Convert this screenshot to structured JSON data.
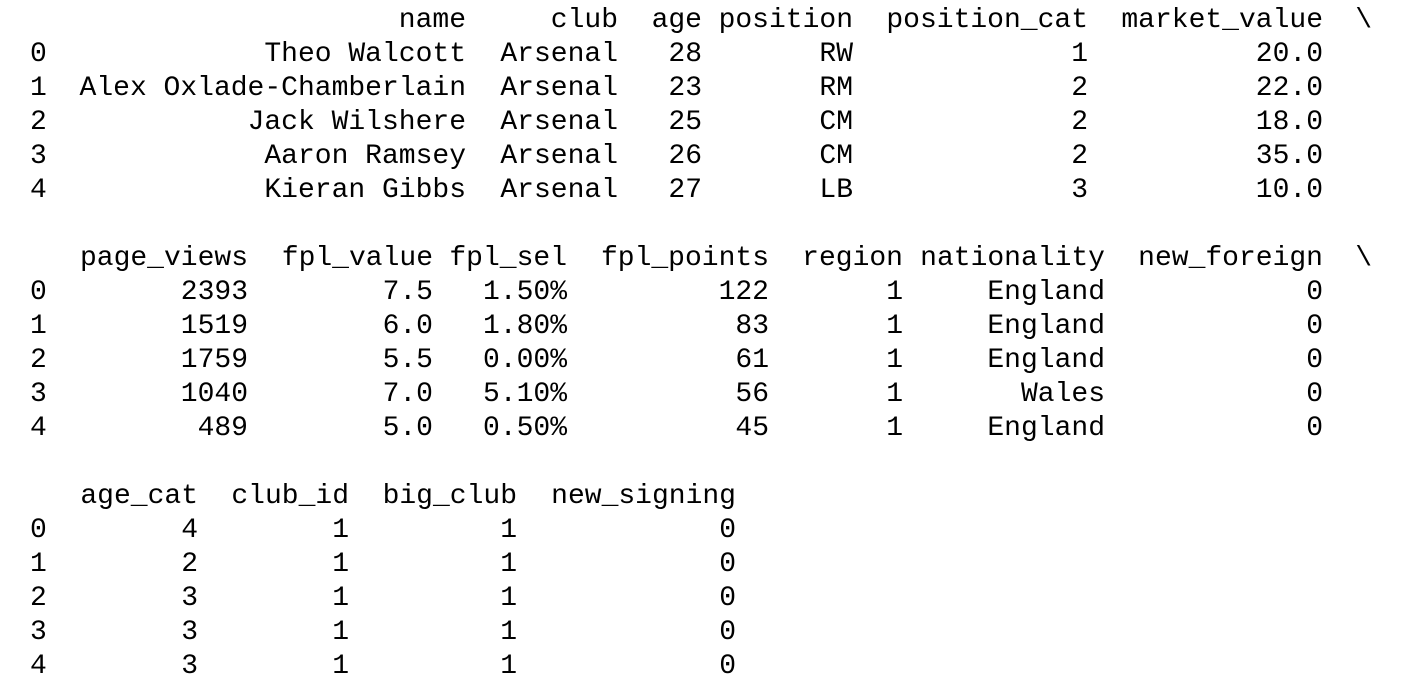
{
  "output": {
    "blocks": [
      {
        "columns": [
          "name",
          "club",
          "age",
          "position",
          "position_cat",
          "market_value"
        ],
        "continuation": "\\",
        "index": [
          "0",
          "1",
          "2",
          "3",
          "4"
        ],
        "rows": [
          [
            "Theo Walcott",
            "Arsenal",
            "28",
            "RW",
            "1",
            "20.0"
          ],
          [
            "Alex Oxlade-Chamberlain",
            "Arsenal",
            "23",
            "RM",
            "2",
            "22.0"
          ],
          [
            "Jack Wilshere",
            "Arsenal",
            "25",
            "CM",
            "2",
            "18.0"
          ],
          [
            "Aaron Ramsey",
            "Arsenal",
            "26",
            "CM",
            "2",
            "35.0"
          ],
          [
            "Kieran Gibbs",
            "Arsenal",
            "27",
            "LB",
            "3",
            "10.0"
          ]
        ]
      },
      {
        "columns": [
          "page_views",
          "fpl_value",
          "fpl_sel",
          "fpl_points",
          "region",
          "nationality",
          "new_foreign"
        ],
        "continuation": "\\",
        "index": [
          "0",
          "1",
          "2",
          "3",
          "4"
        ],
        "rows": [
          [
            "2393",
            "7.5",
            "1.50%",
            "122",
            "1",
            "England",
            "0"
          ],
          [
            "1519",
            "6.0",
            "1.80%",
            "83",
            "1",
            "England",
            "0"
          ],
          [
            "1759",
            "5.5",
            "0.00%",
            "61",
            "1",
            "England",
            "0"
          ],
          [
            "1040",
            "7.0",
            "5.10%",
            "56",
            "1",
            "Wales",
            "0"
          ],
          [
            "489",
            "5.0",
            "0.50%",
            "45",
            "1",
            "England",
            "0"
          ]
        ]
      },
      {
        "columns": [
          "age_cat",
          "club_id",
          "big_club",
          "new_signing"
        ],
        "continuation": "",
        "index": [
          "0",
          "1",
          "2",
          "3",
          "4"
        ],
        "rows": [
          [
            "4",
            "1",
            "1",
            "0"
          ],
          [
            "2",
            "1",
            "1",
            "0"
          ],
          [
            "3",
            "1",
            "1",
            "0"
          ],
          [
            "3",
            "1",
            "1",
            "0"
          ],
          [
            "3",
            "1",
            "1",
            "0"
          ]
        ]
      }
    ]
  }
}
